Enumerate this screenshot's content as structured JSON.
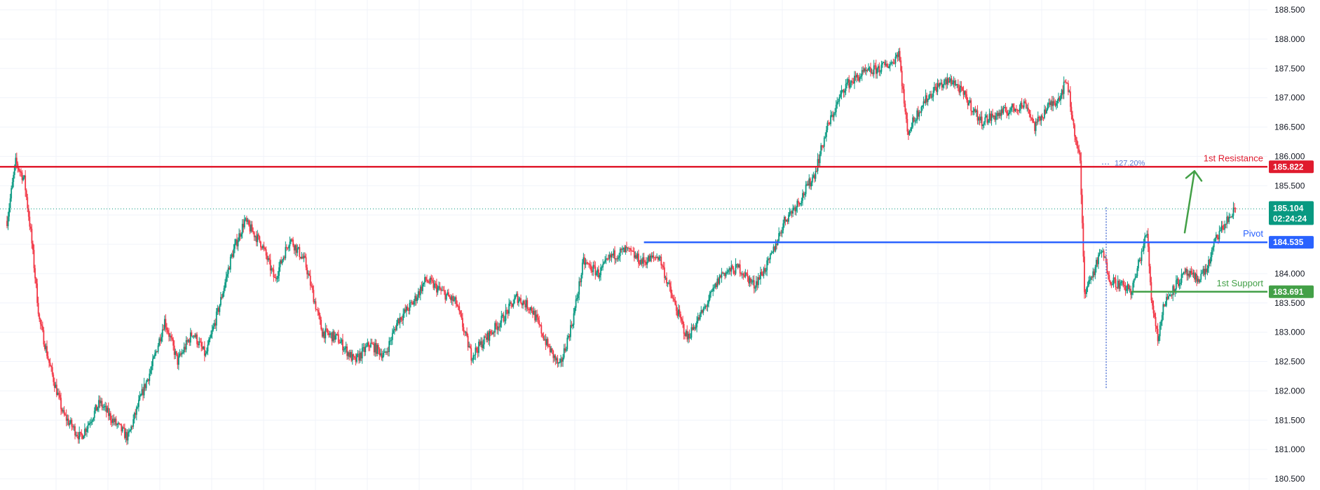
{
  "colors": {
    "up": "#089981",
    "down": "#f23645",
    "resistance": "#e01b2e",
    "pivot": "#2962ff",
    "support": "#43a047",
    "current": "#089981",
    "grid": "#f0f3fa",
    "fib": "#5b7bd6",
    "arrow": "#43a047"
  },
  "chart_data": {
    "type": "candlestick",
    "ylim": [
      180.5,
      188.5
    ],
    "yticks": [
      "180.500",
      "181.000",
      "181.500",
      "182.000",
      "182.500",
      "183.000",
      "183.500",
      "184.000",
      "184.500",
      "185.000",
      "185.500",
      "186.000",
      "186.500",
      "187.000",
      "187.500",
      "188.000",
      "188.500"
    ],
    "price_path": [
      [
        0,
        184.9
      ],
      [
        8,
        185.9
      ],
      [
        16,
        185.6
      ],
      [
        22,
        184.7
      ],
      [
        30,
        183.2
      ],
      [
        40,
        182.4
      ],
      [
        52,
        181.6
      ],
      [
        68,
        181.2
      ],
      [
        86,
        181.8
      ],
      [
        98,
        181.5
      ],
      [
        112,
        181.2
      ],
      [
        124,
        181.9
      ],
      [
        134,
        182.4
      ],
      [
        146,
        183.2
      ],
      [
        158,
        182.5
      ],
      [
        172,
        183.0
      ],
      [
        184,
        182.6
      ],
      [
        196,
        183.4
      ],
      [
        208,
        184.3
      ],
      [
        220,
        184.9
      ],
      [
        236,
        184.5
      ],
      [
        248,
        183.9
      ],
      [
        262,
        184.6
      ],
      [
        276,
        184.2
      ],
      [
        292,
        183.0
      ],
      [
        306,
        182.9
      ],
      [
        322,
        182.5
      ],
      [
        336,
        182.8
      ],
      [
        350,
        182.6
      ],
      [
        362,
        183.2
      ],
      [
        376,
        183.5
      ],
      [
        388,
        183.9
      ],
      [
        402,
        183.7
      ],
      [
        416,
        183.5
      ],
      [
        430,
        182.6
      ],
      [
        444,
        182.9
      ],
      [
        458,
        183.2
      ],
      [
        472,
        183.6
      ],
      [
        486,
        183.4
      ],
      [
        500,
        182.8
      ],
      [
        512,
        182.4
      ],
      [
        524,
        183.2
      ],
      [
        534,
        184.2
      ],
      [
        548,
        184.0
      ],
      [
        560,
        184.3
      ],
      [
        574,
        184.4
      ],
      [
        588,
        184.2
      ],
      [
        604,
        184.3
      ],
      [
        616,
        183.6
      ],
      [
        630,
        182.9
      ],
      [
        646,
        183.4
      ],
      [
        662,
        184.0
      ],
      [
        678,
        184.1
      ],
      [
        692,
        183.8
      ],
      [
        706,
        184.2
      ],
      [
        720,
        184.9
      ],
      [
        736,
        185.3
      ],
      [
        748,
        185.7
      ],
      [
        760,
        186.5
      ],
      [
        776,
        187.2
      ],
      [
        792,
        187.4
      ],
      [
        808,
        187.5
      ],
      [
        820,
        187.6
      ],
      [
        826,
        187.8
      ],
      [
        834,
        186.4
      ],
      [
        848,
        186.9
      ],
      [
        862,
        187.2
      ],
      [
        876,
        187.3
      ],
      [
        888,
        187.0
      ],
      [
        902,
        186.6
      ],
      [
        916,
        186.7
      ],
      [
        930,
        186.8
      ],
      [
        944,
        186.9
      ],
      [
        952,
        186.5
      ],
      [
        962,
        186.8
      ],
      [
        974,
        187.0
      ],
      [
        982,
        187.3
      ],
      [
        988,
        186.5
      ],
      [
        994,
        185.9
      ],
      [
        998,
        183.7
      ],
      [
        1006,
        184.0
      ],
      [
        1014,
        184.4
      ],
      [
        1022,
        183.9
      ],
      [
        1032,
        183.8
      ],
      [
        1042,
        183.7
      ],
      [
        1050,
        184.3
      ],
      [
        1056,
        184.7
      ],
      [
        1060,
        183.6
      ],
      [
        1066,
        182.9
      ],
      [
        1072,
        183.5
      ],
      [
        1082,
        183.8
      ],
      [
        1092,
        184.0
      ],
      [
        1102,
        183.9
      ],
      [
        1112,
        184.1
      ],
      [
        1120,
        184.6
      ],
      [
        1130,
        184.9
      ],
      [
        1138,
        185.1
      ]
    ],
    "annotations": {
      "resistance": {
        "label": "1st Resistance",
        "value": "185.822",
        "price": 185.822
      },
      "pivot": {
        "label": "Pivot",
        "value": "184.535",
        "price": 184.535,
        "start_bar": 590
      },
      "support": {
        "label": "1st Support",
        "value": "183.691",
        "price": 183.691,
        "start_bar": 1042
      },
      "fib": {
        "label": "127.20%",
        "price": 185.822
      },
      "current": {
        "value": "185.104",
        "countdown": "02:24:24",
        "price": 185.104
      },
      "projection_arrow": {
        "from_price": 184.7,
        "to_price": 185.75
      }
    }
  }
}
